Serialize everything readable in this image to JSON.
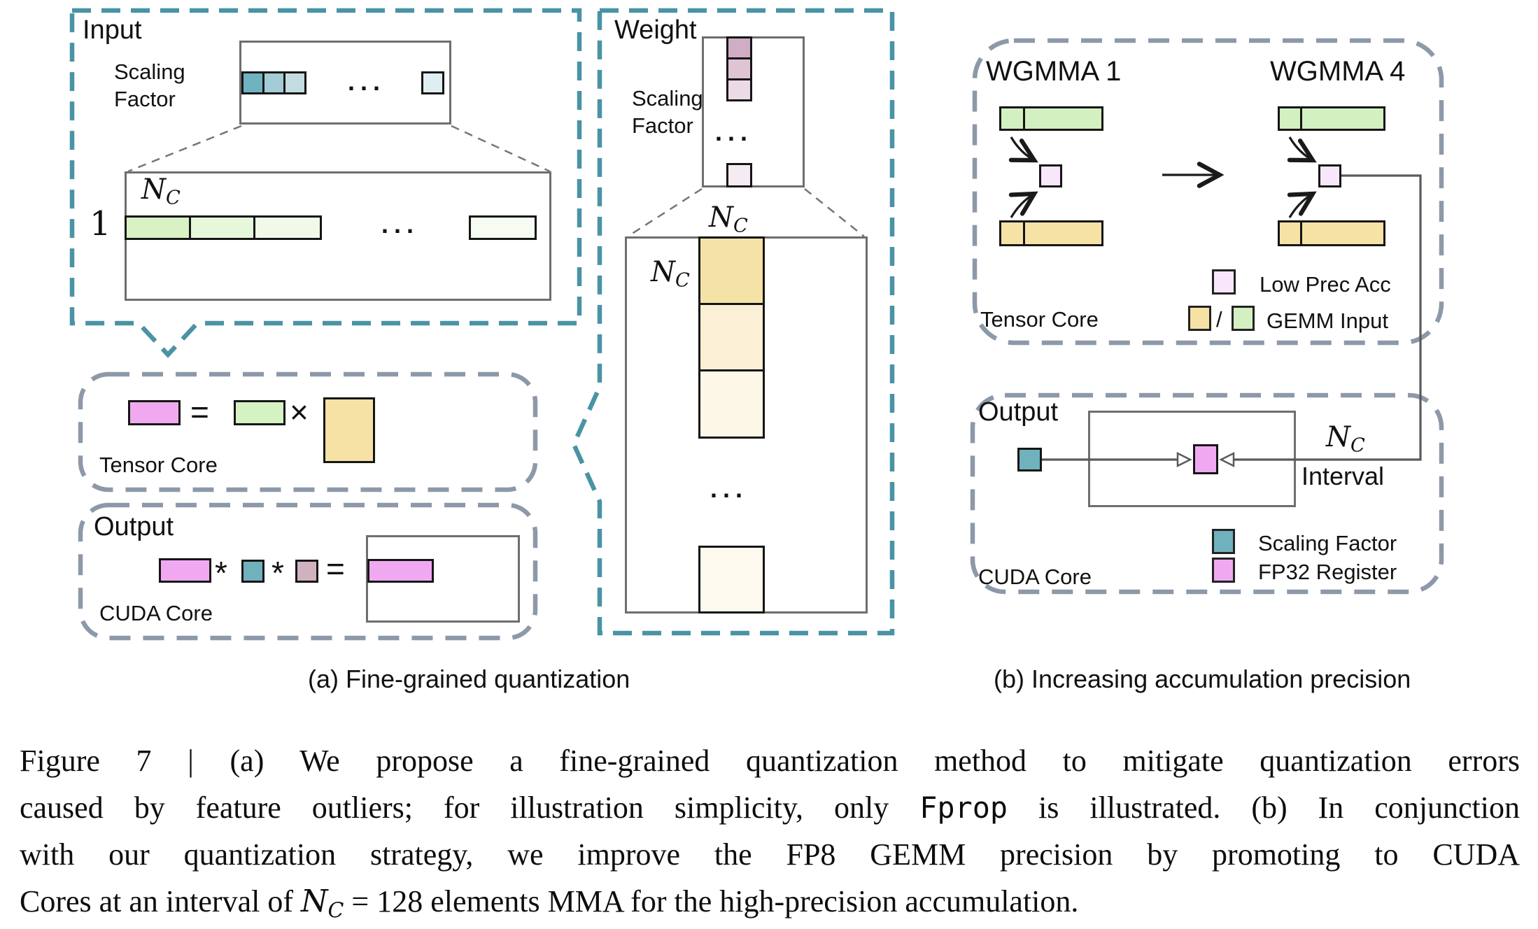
{
  "colors": {
    "teal_dash": "#4a93a5",
    "gray_dash": "#8d99a9",
    "leader_gray": "#767676",
    "connector_gray": "#5a5a5a",
    "arrow_black": "#1a1a1a",
    "pink": "#f0a9f0",
    "acc_pink": "#f8e7fa",
    "green": "#d5f2c3",
    "wgmma_green": "#d2f0c0",
    "yellow": "#f7e2a6",
    "teal_sq": "#6fb2bd",
    "mauve_sq": "#d0b1bf",
    "input_sf": [
      "#6fb3c0",
      "#a3ccd6",
      "#c2dce2",
      "#dfeef1"
    ],
    "input_row": [
      "#d8f2c4",
      "#e7f8da",
      "#f1fae9",
      "#f6fcf1"
    ],
    "weight_sf": [
      "#cfadc5",
      "#dfc4d5",
      "#ecdbe6",
      "#f4ecf2"
    ],
    "weight_col": [
      "#f4e2a6",
      "#fbf0d6",
      "#fdf7e8",
      "#fdf9ee"
    ]
  },
  "shared": {
    "dots": "...",
    "nc": [
      {
        "t": "N",
        "s": "i"
      },
      {
        "t": "C",
        "s": "sub"
      }
    ],
    "scaling_factor": "Scaling Factor",
    "tensor_core": "Tensor Core",
    "cuda_core": "CUDA Core",
    "output": "Output"
  },
  "panel_a": {
    "input_title": "Input",
    "weight_title": "Weight",
    "row_index": "1",
    "ops": {
      "equals": "=",
      "times": "×",
      "star": "*"
    },
    "caption": "(a) Fine-grained quantization"
  },
  "panel_b": {
    "wgmma1": "WGMMA 1",
    "wgmma4": "WGMMA 4",
    "legend_top": {
      "low_prec": "Low Prec Acc",
      "slash": "/",
      "gemm_input": "GEMM Input"
    },
    "interval_label": "Interval",
    "legend_bottom": {
      "scaling": "Scaling Factor",
      "fp32": "FP32 Register"
    },
    "caption": "(b) Increasing accumulation precision"
  },
  "figure_caption": {
    "line1": [
      {
        "t": "Figure 7 | (a) We propose a fine-grained quantization method to mitigate quantization errors"
      }
    ],
    "line2": [
      {
        "t": "caused by feature outliers; for illustration simplicity, only "
      },
      {
        "t": "Fprop",
        "s": "mono"
      },
      {
        "t": " is illustrated. (b) In conjunction"
      }
    ],
    "line3": [
      {
        "t": "with our quantization strategy, we improve the FP8 GEMM precision by promoting to CUDA"
      }
    ],
    "line4": [
      {
        "t": "Cores at an interval of "
      },
      {
        "t": "N",
        "s": "i"
      },
      {
        "t": "C",
        "s": "sub"
      },
      {
        "t": " = 128 elements MMA for the high-precision accumulation."
      }
    ]
  }
}
